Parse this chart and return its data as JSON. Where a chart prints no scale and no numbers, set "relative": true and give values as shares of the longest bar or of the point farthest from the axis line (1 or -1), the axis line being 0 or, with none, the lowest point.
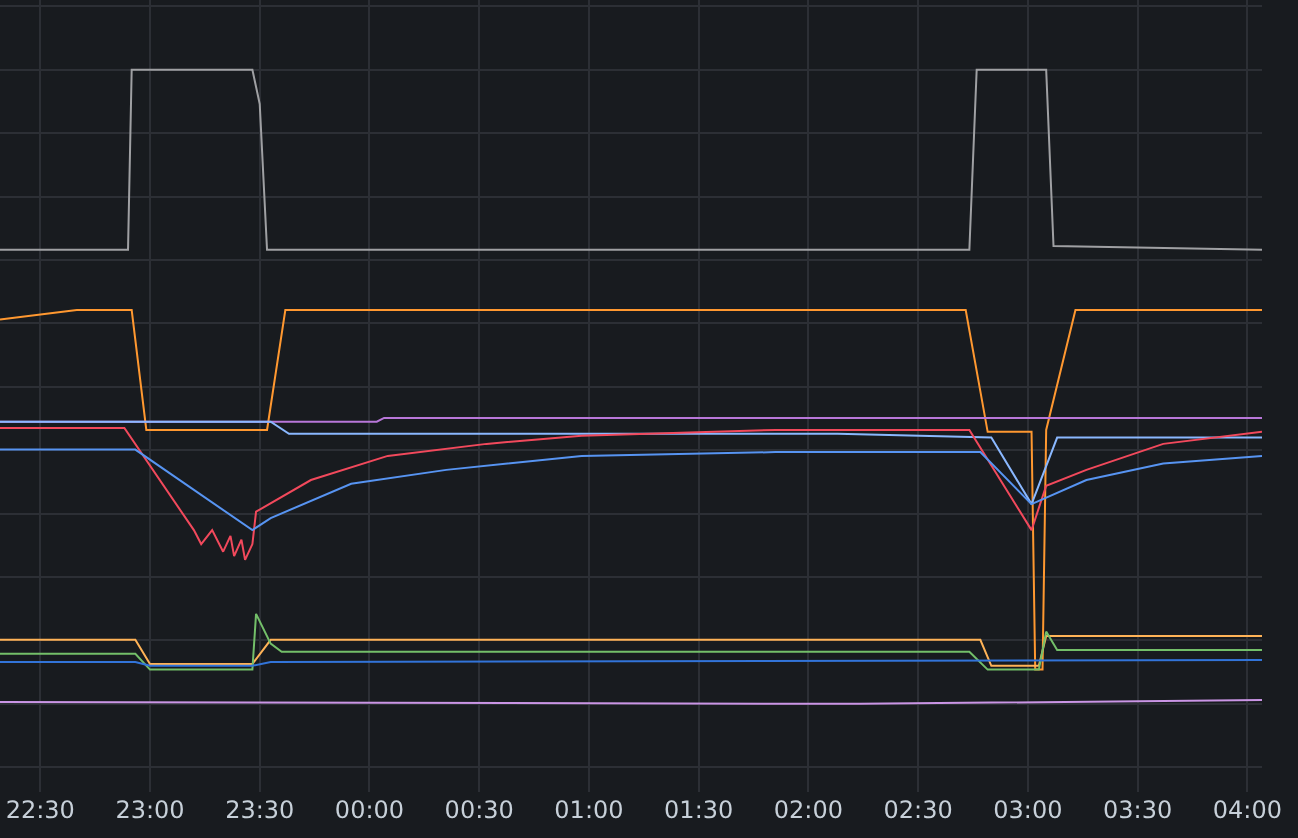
{
  "chart_data": {
    "type": "line",
    "relative": true,
    "grid": true,
    "marker": "none",
    "line_style": "solid",
    "xlim": [
      "2000-01-01T22:19",
      "2000-01-02T04:04"
    ],
    "xticks": [
      {
        "value": "2000-01-01T22:30",
        "label": "22:30"
      },
      {
        "value": "2000-01-01T23:00",
        "label": "23:00"
      },
      {
        "value": "2000-01-01T23:30",
        "label": "23:30"
      },
      {
        "value": "2000-01-02T00:00",
        "label": "00:00"
      },
      {
        "value": "2000-01-02T00:30",
        "label": "00:30"
      },
      {
        "value": "2000-01-02T01:00",
        "label": "01:00"
      },
      {
        "value": "2000-01-02T01:30",
        "label": "01:30"
      },
      {
        "value": "2000-01-02T02:00",
        "label": "02:00"
      },
      {
        "value": "2000-01-02T02:30",
        "label": "02:30"
      },
      {
        "value": "2000-01-02T03:00",
        "label": "03:00"
      },
      {
        "value": "2000-01-02T03:30",
        "label": "03:30"
      },
      {
        "value": "2000-01-02T04:00",
        "label": "04:00"
      }
    ],
    "series": [
      {
        "color": "#9fa0a3",
        "x": [
          "2000-01-01T22:19",
          "2000-01-01T22:54",
          "2000-01-01T22:55",
          "2000-01-01T23:28",
          "2000-01-01T23:30",
          "2000-01-01T23:32",
          "2000-01-02T02:44",
          "2000-01-02T02:46",
          "2000-01-02T03:05",
          "2000-01-02T03:07",
          "2000-01-02T04:04"
        ],
        "values": [
          0.716,
          0.716,
          1.0,
          1.0,
          0.946,
          0.716,
          0.716,
          1.0,
          1.0,
          0.722,
          0.716
        ]
      },
      {
        "color": "#ff9830",
        "x": [
          "2000-01-01T22:19",
          "2000-01-01T22:40",
          "2000-01-01T22:55",
          "2000-01-01T22:59",
          "2000-01-01T23:32",
          "2000-01-01T23:37",
          "2000-01-02T02:43",
          "2000-01-02T02:49",
          "2000-01-02T03:01",
          "2000-01-02T03:02",
          "2000-01-02T03:04",
          "2000-01-02T03:05",
          "2000-01-02T03:13",
          "2000-01-02T04:04"
        ],
        "values": [
          0.606,
          0.621,
          0.621,
          0.432,
          0.432,
          0.621,
          0.621,
          0.429,
          0.429,
          0.054,
          0.054,
          0.432,
          0.621,
          0.621
        ]
      },
      {
        "color": "#b877d9",
        "x": [
          "2000-01-01T22:19",
          "2000-01-02T00:02",
          "2000-01-02T00:04",
          "2000-01-02T04:04"
        ],
        "values": [
          0.445,
          0.445,
          0.451,
          0.451
        ]
      },
      {
        "color": "#8ab8ff",
        "x": [
          "2000-01-01T22:19",
          "2000-01-01T23:33",
          "2000-01-01T23:38",
          "2000-01-02T02:08",
          "2000-01-02T02:50",
          "2000-01-02T03:01",
          "2000-01-02T03:08",
          "2000-01-02T04:04"
        ],
        "values": [
          0.445,
          0.445,
          0.426,
          0.426,
          0.42,
          0.315,
          0.42,
          0.42
        ]
      },
      {
        "color": "#f2495c",
        "x": [
          "2000-01-01T22:19",
          "2000-01-01T22:53",
          "2000-01-01T23:12",
          "2000-01-01T23:14",
          "2000-01-01T23:17",
          "2000-01-01T23:20",
          "2000-01-01T23:22",
          "2000-01-01T23:23",
          "2000-01-01T23:25",
          "2000-01-01T23:26",
          "2000-01-01T23:28",
          "2000-01-01T23:29",
          "2000-01-01T23:44",
          "2000-01-02T00:05",
          "2000-01-02T00:32",
          "2000-01-02T00:58",
          "2000-01-02T01:51",
          "2000-01-02T02:44",
          "2000-01-02T03:01",
          "2000-01-02T03:05",
          "2000-01-02T03:16",
          "2000-01-02T03:37",
          "2000-01-02T04:04"
        ],
        "values": [
          0.435,
          0.435,
          0.274,
          0.252,
          0.274,
          0.24,
          0.265,
          0.233,
          0.259,
          0.227,
          0.252,
          0.303,
          0.353,
          0.391,
          0.41,
          0.423,
          0.432,
          0.432,
          0.274,
          0.344,
          0.369,
          0.41,
          0.429
        ]
      },
      {
        "color": "#5794f2",
        "x": [
          "2000-01-01T22:19",
          "2000-01-01T22:56",
          "2000-01-01T23:28",
          "2000-01-01T23:33",
          "2000-01-01T23:55",
          "2000-01-02T00:21",
          "2000-01-02T00:58",
          "2000-01-02T01:51",
          "2000-01-02T02:47",
          "2000-01-02T03:01",
          "2000-01-02T03:16",
          "2000-01-02T03:37",
          "2000-01-02T04:04"
        ],
        "values": [
          0.401,
          0.401,
          0.274,
          0.293,
          0.347,
          0.369,
          0.391,
          0.397,
          0.397,
          0.315,
          0.353,
          0.379,
          0.391
        ]
      },
      {
        "color": "#ffb357",
        "x": [
          "2000-01-01T22:19",
          "2000-01-01T22:56",
          "2000-01-01T23:00",
          "2000-01-01T23:28",
          "2000-01-01T23:33",
          "2000-01-02T02:47",
          "2000-01-02T02:50",
          "2000-01-02T03:03",
          "2000-01-02T03:05",
          "2000-01-02T04:04"
        ],
        "values": [
          0.101,
          0.101,
          0.063,
          0.063,
          0.101,
          0.101,
          0.06,
          0.06,
          0.107,
          0.107
        ]
      },
      {
        "color": "#73bf69",
        "x": [
          "2000-01-01T22:19",
          "2000-01-01T22:56",
          "2000-01-01T23:00",
          "2000-01-01T23:28",
          "2000-01-01T23:29",
          "2000-01-01T23:33",
          "2000-01-01T23:36",
          "2000-01-02T02:44",
          "2000-01-02T02:49",
          "2000-01-02T03:03",
          "2000-01-02T03:05",
          "2000-01-02T03:08",
          "2000-01-02T04:04"
        ],
        "values": [
          0.079,
          0.079,
          0.054,
          0.054,
          0.142,
          0.095,
          0.082,
          0.082,
          0.054,
          0.054,
          0.114,
          0.085,
          0.085
        ]
      },
      {
        "color": "#3274d9",
        "x": [
          "2000-01-01T22:19",
          "2000-01-01T22:56",
          "2000-01-01T23:00",
          "2000-01-01T23:28",
          "2000-01-01T23:33",
          "2000-01-02T04:04"
        ],
        "values": [
          0.066,
          0.066,
          0.06,
          0.06,
          0.066,
          0.069
        ]
      },
      {
        "color": "#ca95e5",
        "x": [
          "2000-01-01T22:19",
          "2000-01-02T02:14",
          "2000-01-02T04:04"
        ],
        "values": [
          0.003,
          0.0,
          0.006
        ]
      }
    ]
  }
}
